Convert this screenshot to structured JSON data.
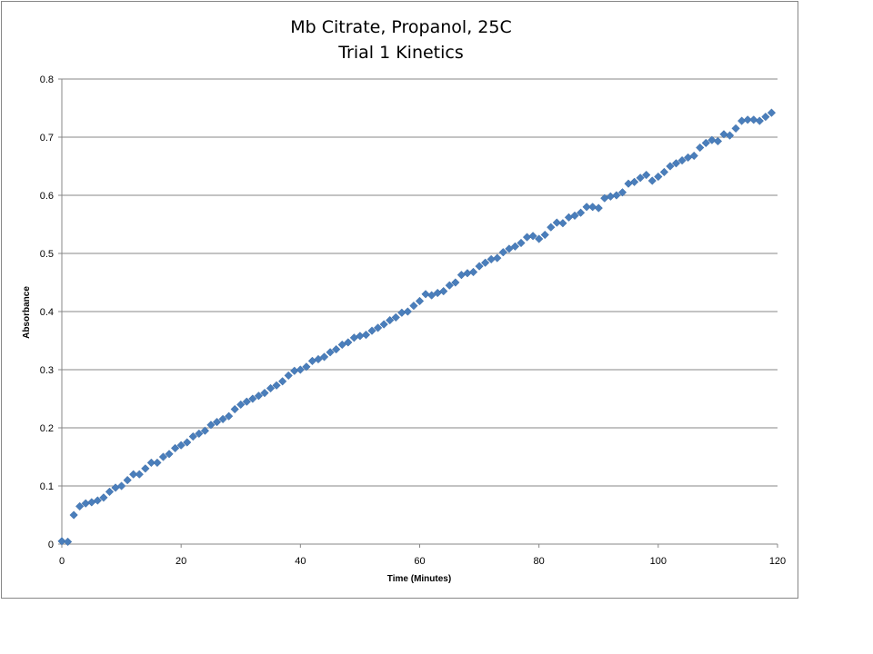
{
  "chart_data": {
    "type": "scatter",
    "title": "Mb Citrate, Propanol, 25C",
    "subtitle": "Trial 1 Kinetics",
    "xlabel": "Time (Minutes)",
    "ylabel": "Absorbance",
    "xlim": [
      0,
      120
    ],
    "ylim": [
      0,
      0.8
    ],
    "x_ticks": [
      "0",
      "20",
      "40",
      "60",
      "80",
      "100",
      "120"
    ],
    "y_ticks": [
      "0",
      "0.1",
      "0.2",
      "0.3",
      "0.4",
      "0.5",
      "0.6",
      "0.7",
      "0.8"
    ],
    "grid": "horizontal",
    "marker": "diamond",
    "color": "#4A7EBB",
    "x": [
      0,
      1,
      2,
      3,
      4,
      5,
      6,
      7,
      8,
      9,
      10,
      11,
      12,
      13,
      14,
      15,
      16,
      17,
      18,
      19,
      20,
      21,
      22,
      23,
      24,
      25,
      26,
      27,
      28,
      29,
      30,
      31,
      32,
      33,
      34,
      35,
      36,
      37,
      38,
      39,
      40,
      41,
      42,
      43,
      44,
      45,
      46,
      47,
      48,
      49,
      50,
      51,
      52,
      53,
      54,
      55,
      56,
      57,
      58,
      59,
      60,
      61,
      62,
      63,
      64,
      65,
      66,
      67,
      68,
      69,
      70,
      71,
      72,
      73,
      74,
      75,
      76,
      77,
      78,
      79,
      80,
      81,
      82,
      83,
      84,
      85,
      86,
      87,
      88,
      89,
      90,
      91,
      92,
      93,
      94,
      95,
      96,
      97,
      98,
      99,
      100,
      101,
      102,
      103,
      104,
      105,
      106,
      107,
      108,
      109,
      110,
      111,
      112,
      113,
      114,
      115,
      116,
      117,
      118,
      119
    ],
    "y": [
      0.005,
      0.004,
      0.05,
      0.065,
      0.07,
      0.072,
      0.075,
      0.08,
      0.09,
      0.097,
      0.1,
      0.11,
      0.12,
      0.12,
      0.13,
      0.14,
      0.14,
      0.15,
      0.155,
      0.165,
      0.17,
      0.175,
      0.185,
      0.19,
      0.195,
      0.205,
      0.21,
      0.215,
      0.22,
      0.232,
      0.24,
      0.245,
      0.25,
      0.255,
      0.26,
      0.268,
      0.273,
      0.28,
      0.29,
      0.298,
      0.3,
      0.305,
      0.315,
      0.318,
      0.322,
      0.33,
      0.335,
      0.343,
      0.347,
      0.355,
      0.358,
      0.36,
      0.367,
      0.372,
      0.378,
      0.385,
      0.39,
      0.398,
      0.4,
      0.41,
      0.418,
      0.43,
      0.428,
      0.432,
      0.435,
      0.445,
      0.45,
      0.463,
      0.466,
      0.468,
      0.478,
      0.484,
      0.49,
      0.492,
      0.502,
      0.508,
      0.512,
      0.518,
      0.528,
      0.53,
      0.525,
      0.532,
      0.545,
      0.553,
      0.552,
      0.562,
      0.565,
      0.57,
      0.58,
      0.58,
      0.578,
      0.595,
      0.598,
      0.6,
      0.605,
      0.62,
      0.623,
      0.63,
      0.635,
      0.625,
      0.632,
      0.64,
      0.65,
      0.655,
      0.66,
      0.665,
      0.668,
      0.682,
      0.69,
      0.695,
      0.693,
      0.705,
      0.703,
      0.715,
      0.728,
      0.73,
      0.73,
      0.728,
      0.735,
      0.742
    ]
  }
}
